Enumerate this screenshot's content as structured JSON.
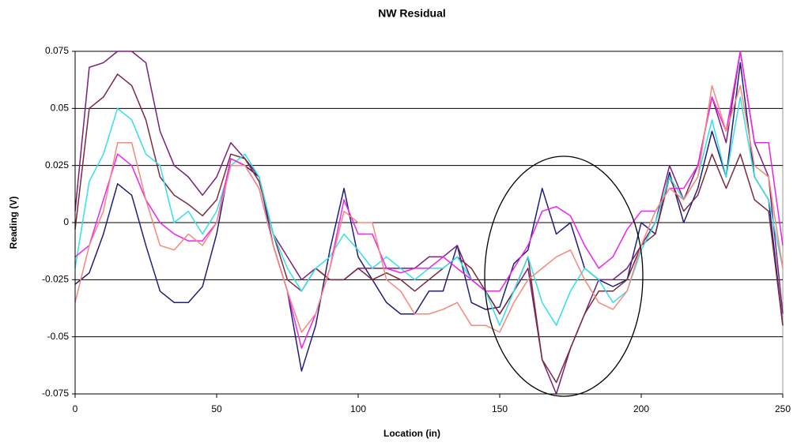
{
  "chart_data": {
    "type": "line",
    "title": "NW Residual",
    "x_label": "Location (in)",
    "y_label": "Reading (V)",
    "x": [
      0,
      5,
      10,
      15,
      20,
      25,
      30,
      35,
      40,
      45,
      50,
      55,
      60,
      65,
      70,
      75,
      80,
      85,
      90,
      95,
      100,
      105,
      110,
      115,
      120,
      125,
      130,
      135,
      140,
      145,
      150,
      155,
      160,
      165,
      170,
      175,
      180,
      185,
      190,
      195,
      200,
      205,
      210,
      215,
      220,
      225,
      230,
      235,
      240,
      245,
      250
    ],
    "series": [
      {
        "color": "#1f1f7a",
        "values": [
          -0.027,
          -0.022,
          -0.005,
          0.017,
          0.012,
          -0.01,
          -0.03,
          -0.035,
          -0.035,
          -0.028,
          -0.005,
          0.028,
          0.025,
          0.02,
          -0.01,
          -0.03,
          -0.065,
          -0.045,
          -0.012,
          0.015,
          -0.015,
          -0.025,
          -0.035,
          -0.04,
          -0.04,
          -0.03,
          -0.03,
          -0.01,
          -0.035,
          -0.038,
          -0.037,
          -0.018,
          -0.012,
          0.015,
          -0.005,
          0,
          -0.02,
          -0.025,
          -0.028,
          -0.025,
          0,
          -0.005,
          0.022,
          0,
          0.015,
          0.04,
          0.02,
          0.07,
          0.02,
          0.01,
          -0.045
        ]
      },
      {
        "color": "#7a1f7a",
        "values": [
          0.005,
          0.068,
          0.07,
          0.075,
          0.075,
          0.07,
          0.04,
          0.025,
          0.02,
          0.012,
          0.02,
          0.035,
          0.028,
          0.02,
          -0.005,
          -0.015,
          -0.025,
          -0.02,
          -0.025,
          -0.025,
          -0.02,
          -0.02,
          -0.02,
          -0.02,
          -0.02,
          -0.015,
          -0.015,
          -0.01,
          -0.025,
          -0.03,
          -0.04,
          -0.03,
          -0.02,
          -0.06,
          -0.075,
          -0.055,
          -0.04,
          -0.025,
          -0.025,
          -0.02,
          -0.01,
          0,
          0.025,
          0.01,
          0.025,
          0.055,
          0.035,
          0.075,
          0.035,
          0.02,
          -0.04
        ]
      },
      {
        "color": "#7a2a3a",
        "values": [
          -0.003,
          0.05,
          0.055,
          0.065,
          0.06,
          0.045,
          0.02,
          0.012,
          0.008,
          0.003,
          0.01,
          0.03,
          0.028,
          0.018,
          -0.005,
          -0.025,
          -0.03,
          -0.02,
          -0.025,
          -0.025,
          -0.02,
          -0.025,
          -0.022,
          -0.025,
          -0.03,
          -0.025,
          -0.02,
          -0.015,
          -0.02,
          -0.03,
          -0.04,
          -0.03,
          -0.015,
          -0.06,
          -0.07,
          -0.055,
          -0.04,
          -0.03,
          -0.03,
          -0.025,
          -0.01,
          -0.005,
          0.02,
          0.005,
          0.012,
          0.03,
          0.015,
          0.03,
          0.01,
          0.005,
          -0.045
        ]
      },
      {
        "color": "#33e0e8",
        "values": [
          -0.02,
          0.018,
          0.03,
          0.05,
          0.045,
          0.03,
          0.025,
          0,
          0.005,
          -0.005,
          0.005,
          0.025,
          0.03,
          0.02,
          -0.005,
          -0.02,
          -0.03,
          -0.02,
          -0.015,
          -0.005,
          -0.012,
          -0.02,
          -0.015,
          -0.02,
          -0.025,
          -0.02,
          -0.02,
          -0.015,
          -0.025,
          -0.03,
          -0.045,
          -0.03,
          -0.015,
          -0.035,
          -0.045,
          -0.03,
          -0.02,
          -0.025,
          -0.035,
          -0.03,
          -0.012,
          0,
          0.02,
          0.01,
          0.02,
          0.045,
          0.02,
          0.055,
          0.02,
          0.01,
          -0.02
        ]
      },
      {
        "color": "#ee22ee",
        "values": [
          -0.015,
          -0.01,
          0.01,
          0.03,
          0.025,
          0.01,
          0,
          -0.005,
          -0.008,
          -0.008,
          0,
          0.028,
          0.025,
          0.015,
          -0.01,
          -0.03,
          -0.055,
          -0.04,
          -0.02,
          0.01,
          -0.005,
          -0.005,
          -0.02,
          -0.022,
          -0.02,
          -0.02,
          -0.015,
          -0.02,
          -0.025,
          -0.03,
          -0.03,
          -0.02,
          -0.01,
          0.005,
          0.007,
          0.003,
          -0.01,
          -0.02,
          -0.015,
          -0.003,
          0.005,
          0.005,
          0.015,
          0.015,
          0.025,
          0.055,
          0.04,
          0.075,
          0.035,
          0.035,
          -0.01
        ]
      },
      {
        "color": "#f5887a",
        "values": [
          -0.035,
          -0.01,
          0.005,
          0.035,
          0.035,
          0.01,
          -0.01,
          -0.012,
          -0.005,
          -0.01,
          0,
          0.025,
          0.025,
          0.015,
          -0.01,
          -0.03,
          -0.048,
          -0.04,
          -0.02,
          0.005,
          0,
          0,
          -0.025,
          -0.03,
          -0.04,
          -0.04,
          -0.038,
          -0.035,
          -0.045,
          -0.045,
          -0.048,
          -0.035,
          -0.025,
          -0.02,
          -0.015,
          -0.012,
          -0.025,
          -0.035,
          -0.038,
          -0.03,
          -0.01,
          0.005,
          0.015,
          0.01,
          0.02,
          0.06,
          0.04,
          0.06,
          0.025,
          0.02,
          -0.02
        ]
      }
    ],
    "xlim": [
      0,
      250
    ],
    "xticks": [
      0,
      50,
      100,
      150,
      200,
      250
    ],
    "ylim": [
      -0.075,
      0.075
    ],
    "yticks": [
      -0.075,
      -0.05,
      -0.025,
      0,
      0.025,
      0.05,
      0.075
    ],
    "grid": true
  }
}
